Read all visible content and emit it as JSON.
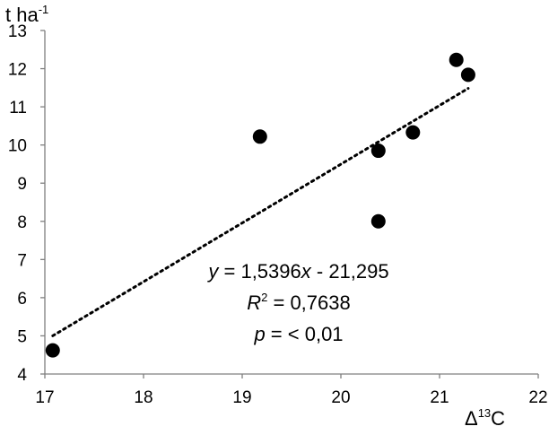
{
  "chart_data": {
    "type": "scatter",
    "title": "",
    "xlabel": {
      "prefix": "Δ",
      "sup": "13",
      "suffix": "C"
    },
    "ylabel": {
      "base": "t ha",
      "sup": "-1"
    },
    "xlim": [
      17,
      22
    ],
    "ylim": [
      4,
      13
    ],
    "x_ticks": [
      "17",
      "18",
      "19",
      "20",
      "21",
      "22"
    ],
    "y_ticks": [
      "4",
      "5",
      "6",
      "7",
      "8",
      "9",
      "10",
      "11",
      "12",
      "13"
    ],
    "points": [
      {
        "x": 17.08,
        "y": 4.62
      },
      {
        "x": 19.18,
        "y": 10.22
      },
      {
        "x": 20.38,
        "y": 9.85
      },
      {
        "x": 20.38,
        "y": 8.0
      },
      {
        "x": 20.73,
        "y": 10.33
      },
      {
        "x": 21.17,
        "y": 12.23
      },
      {
        "x": 21.29,
        "y": 11.84
      }
    ],
    "trendline": {
      "style": "dotted",
      "slope": 1.5396,
      "intercept": -21.295,
      "x_range": [
        17.08,
        21.29
      ]
    },
    "annotations": {
      "equation": {
        "y": "y",
        "mid": " = 1,5396",
        "x": "x",
        "rest": " - 21,295"
      },
      "r2": {
        "r": "R",
        "sup": "2",
        "rest": " = 0,7638"
      },
      "p": {
        "p": "p",
        "rest": " = < 0,01"
      }
    },
    "grid": false,
    "legend": "none"
  }
}
